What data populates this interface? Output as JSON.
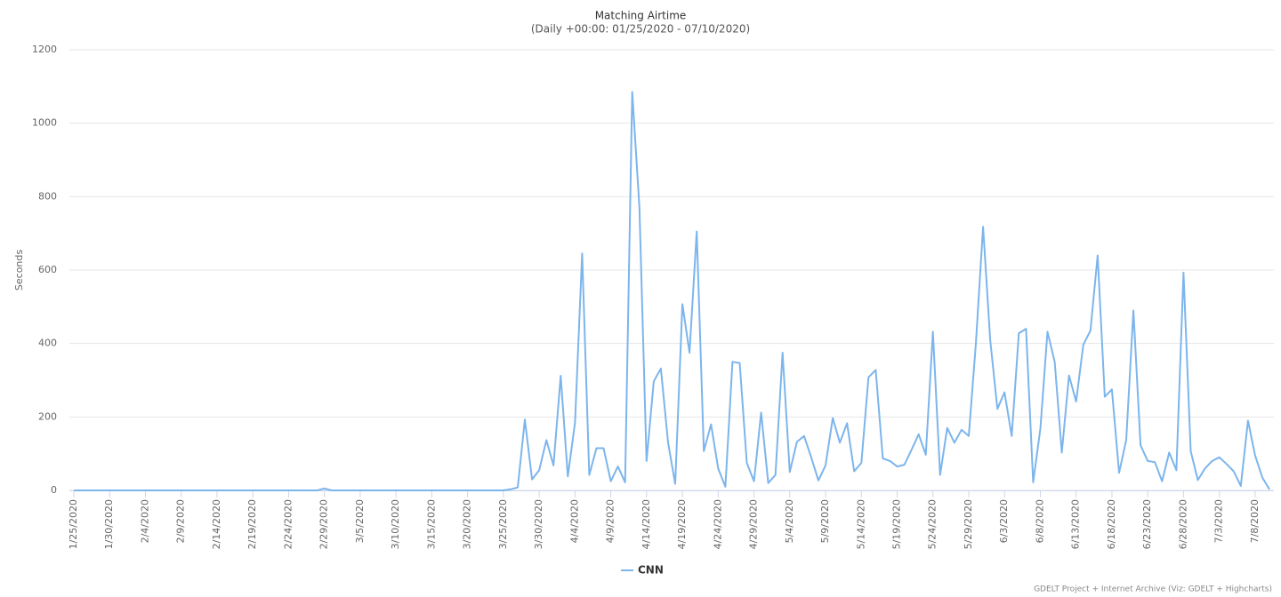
{
  "chart_data": {
    "type": "line",
    "title": "Matching Airtime",
    "subtitle": "(Daily +00:00: 01/25/2020 - 07/10/2020)",
    "y_label": "Seconds",
    "credits": "GDELT Project + Internet Archive (Viz: GDELT + Highcharts)",
    "categories": [
      "1/25/2020",
      null,
      null,
      null,
      null,
      "1/30/2020",
      null,
      null,
      null,
      null,
      "2/4/2020",
      null,
      null,
      null,
      null,
      "2/9/2020",
      null,
      null,
      null,
      null,
      "2/14/2020",
      null,
      null,
      null,
      null,
      "2/19/2020",
      null,
      null,
      null,
      null,
      "2/24/2020",
      null,
      null,
      null,
      null,
      "2/29/2020",
      null,
      null,
      null,
      null,
      "3/5/2020",
      null,
      null,
      null,
      null,
      "3/10/2020",
      null,
      null,
      null,
      null,
      "3/15/2020",
      null,
      null,
      null,
      null,
      "3/20/2020",
      null,
      null,
      null,
      null,
      "3/25/2020",
      null,
      null,
      null,
      null,
      "3/30/2020",
      null,
      null,
      null,
      null,
      "4/4/2020",
      null,
      null,
      null,
      null,
      "4/9/2020",
      null,
      null,
      null,
      null,
      "4/14/2020",
      null,
      null,
      null,
      null,
      "4/19/2020",
      null,
      null,
      null,
      null,
      "4/24/2020",
      null,
      null,
      null,
      null,
      "4/29/2020",
      null,
      null,
      null,
      null,
      "5/4/2020",
      null,
      null,
      null,
      null,
      "5/9/2020",
      null,
      null,
      null,
      null,
      "5/14/2020",
      null,
      null,
      null,
      null,
      "5/19/2020",
      null,
      null,
      null,
      null,
      "5/24/2020",
      null,
      null,
      null,
      null,
      "5/29/2020",
      null,
      null,
      null,
      null,
      "6/3/2020",
      null,
      null,
      null,
      null,
      "6/8/2020",
      null,
      null,
      null,
      null,
      "6/13/2020",
      null,
      null,
      null,
      null,
      "6/18/2020",
      null,
      null,
      null,
      null,
      "6/23/2020",
      null,
      null,
      null,
      null,
      "6/28/2020",
      null,
      null,
      null,
      null,
      "7/3/2020",
      null,
      null,
      null,
      null,
      "7/8/2020",
      null,
      null
    ],
    "series": [
      {
        "name": "CNN",
        "color": "#7cb5ec",
        "values": [
          0,
          0,
          0,
          0,
          0,
          0,
          0,
          0,
          0,
          0,
          0,
          0,
          0,
          0,
          0,
          0,
          0,
          0,
          0,
          0,
          0,
          0,
          0,
          0,
          0,
          0,
          0,
          0,
          0,
          0,
          0,
          0,
          0,
          0,
          0,
          5,
          0,
          0,
          0,
          0,
          0,
          0,
          0,
          0,
          0,
          0,
          0,
          0,
          0,
          0,
          0,
          0,
          0,
          0,
          0,
          0,
          0,
          0,
          0,
          0,
          0,
          3,
          8,
          193,
          30,
          55,
          137,
          68,
          312,
          38,
          185,
          645,
          42,
          115,
          115,
          25,
          65,
          22,
          1085,
          770,
          80,
          297,
          332,
          130,
          18,
          507,
          375,
          705,
          107,
          180,
          60,
          10,
          350,
          347,
          75,
          25,
          212,
          20,
          42,
          375,
          50,
          132,
          148,
          90,
          27,
          68,
          197,
          130,
          183,
          52,
          75,
          308,
          328,
          87,
          80,
          65,
          70,
          110,
          153,
          97,
          432,
          42,
          170,
          130,
          165,
          148,
          400,
          718,
          410,
          222,
          267,
          148,
          428,
          440,
          22,
          168,
          432,
          350,
          103,
          313,
          242,
          397,
          435,
          640,
          255,
          275,
          48,
          137,
          490,
          123,
          80,
          77,
          25,
          103,
          55,
          593,
          107,
          28,
          60,
          80,
          90,
          72,
          52,
          12,
          190,
          95,
          35,
          3
        ]
      }
    ],
    "ylim": [
      0,
      1200
    ],
    "yticks": [
      0,
      200,
      400,
      600,
      800,
      1000,
      1200
    ],
    "grid": true
  }
}
